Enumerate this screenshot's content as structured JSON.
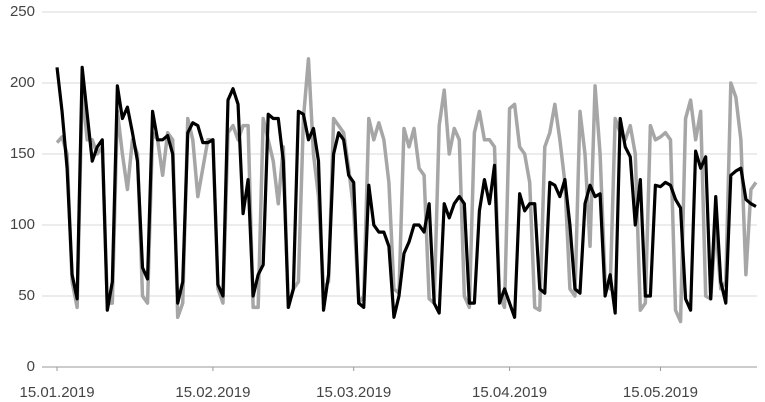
{
  "chart_data": {
    "type": "line",
    "x": [
      "2019-01-15",
      "2019-01-16",
      "2019-01-17",
      "2019-01-18",
      "2019-01-19",
      "2019-01-20",
      "2019-01-21",
      "2019-01-22",
      "2019-01-23",
      "2019-01-24",
      "2019-01-25",
      "2019-01-26",
      "2019-01-27",
      "2019-01-28",
      "2019-01-29",
      "2019-01-30",
      "2019-01-31",
      "2019-02-01",
      "2019-02-02",
      "2019-02-03",
      "2019-02-04",
      "2019-02-05",
      "2019-02-06",
      "2019-02-07",
      "2019-02-08",
      "2019-02-09",
      "2019-02-10",
      "2019-02-11",
      "2019-02-12",
      "2019-02-13",
      "2019-02-14",
      "2019-02-15",
      "2019-02-16",
      "2019-02-17",
      "2019-02-18",
      "2019-02-19",
      "2019-02-20",
      "2019-02-21",
      "2019-02-22",
      "2019-02-23",
      "2019-02-24",
      "2019-02-25",
      "2019-02-26",
      "2019-02-27",
      "2019-02-28",
      "2019-03-01",
      "2019-03-02",
      "2019-03-03",
      "2019-03-04",
      "2019-03-05",
      "2019-03-06",
      "2019-03-07",
      "2019-03-08",
      "2019-03-09",
      "2019-03-10",
      "2019-03-11",
      "2019-03-12",
      "2019-03-13",
      "2019-03-14",
      "2019-03-15",
      "2019-03-16",
      "2019-03-17",
      "2019-03-18",
      "2019-03-19",
      "2019-03-20",
      "2019-03-21",
      "2019-03-22",
      "2019-03-23",
      "2019-03-24",
      "2019-03-25",
      "2019-03-26",
      "2019-03-27",
      "2019-03-28",
      "2019-03-29",
      "2019-03-30",
      "2019-03-31",
      "2019-04-01",
      "2019-04-02",
      "2019-04-03",
      "2019-04-04",
      "2019-04-05",
      "2019-04-06",
      "2019-04-07",
      "2019-04-08",
      "2019-04-09",
      "2019-04-10",
      "2019-04-11",
      "2019-04-12",
      "2019-04-13",
      "2019-04-14",
      "2019-04-15",
      "2019-04-16",
      "2019-04-17",
      "2019-04-18",
      "2019-04-19",
      "2019-04-20",
      "2019-04-21",
      "2019-04-22",
      "2019-04-23",
      "2019-04-24",
      "2019-04-25",
      "2019-04-26",
      "2019-04-27",
      "2019-04-28",
      "2019-04-29",
      "2019-04-30",
      "2019-05-01",
      "2019-05-02",
      "2019-05-03",
      "2019-05-04",
      "2019-05-05",
      "2019-05-06",
      "2019-05-07",
      "2019-05-08",
      "2019-05-09",
      "2019-05-10",
      "2019-05-11",
      "2019-05-12",
      "2019-05-13",
      "2019-05-14",
      "2019-05-15",
      "2019-05-16",
      "2019-05-17",
      "2019-05-18",
      "2019-05-19",
      "2019-05-20",
      "2019-05-21",
      "2019-05-22",
      "2019-05-23",
      "2019-05-24",
      "2019-05-25",
      "2019-05-26",
      "2019-05-27",
      "2019-05-28",
      "2019-05-29",
      "2019-05-30",
      "2019-05-31",
      "2019-06-01",
      "2019-06-02",
      "2019-06-03"
    ],
    "series": [
      {
        "color": "#a6a6a6",
        "values": [
          158,
          162,
          150,
          60,
          42,
          195,
          160,
          160,
          150,
          155,
          45,
          45,
          180,
          150,
          125,
          160,
          150,
          50,
          45,
          165,
          160,
          135,
          165,
          160,
          35,
          45,
          175,
          160,
          120,
          140,
          160,
          160,
          55,
          45,
          165,
          170,
          160,
          170,
          170,
          42,
          42,
          175,
          160,
          145,
          115,
          155,
          42,
          55,
          60,
          175,
          217,
          150,
          120,
          55,
          60,
          175,
          170,
          165,
          140,
          110,
          45,
          50,
          175,
          160,
          172,
          160,
          130,
          55,
          52,
          168,
          155,
          168,
          140,
          135,
          48,
          45,
          170,
          195,
          150,
          168,
          160,
          50,
          42,
          165,
          180,
          160,
          160,
          155,
          50,
          42,
          182,
          185,
          155,
          150,
          130,
          42,
          40,
          155,
          165,
          185,
          160,
          130,
          55,
          50,
          180,
          150,
          85,
          198,
          150,
          60,
          55,
          175,
          165,
          160,
          170,
          150,
          40,
          45,
          170,
          160,
          162,
          165,
          160,
          40,
          32,
          175,
          188,
          160,
          180,
          50,
          48,
          100,
          55,
          60,
          200,
          190,
          160,
          65,
          125,
          130
        ]
      },
      {
        "color": "#000000",
        "values": [
          211,
          180,
          140,
          65,
          48,
          211,
          178,
          145,
          155,
          160,
          40,
          60,
          198,
          175,
          183,
          165,
          145,
          70,
          62,
          180,
          160,
          160,
          163,
          150,
          45,
          60,
          165,
          172,
          170,
          158,
          158,
          160,
          58,
          50,
          188,
          196,
          185,
          108,
          132,
          50,
          65,
          72,
          178,
          175,
          175,
          145,
          42,
          55,
          180,
          178,
          160,
          168,
          145,
          40,
          65,
          150,
          165,
          160,
          135,
          130,
          45,
          42,
          128,
          100,
          95,
          95,
          85,
          35,
          50,
          80,
          88,
          100,
          100,
          95,
          115,
          45,
          38,
          115,
          105,
          115,
          120,
          115,
          45,
          45,
          110,
          132,
          115,
          142,
          45,
          55,
          45,
          35,
          122,
          110,
          115,
          115,
          55,
          52,
          130,
          128,
          120,
          132,
          100,
          55,
          52,
          115,
          128,
          120,
          122,
          50,
          65,
          38,
          175,
          155,
          148,
          100,
          132,
          50,
          50,
          128,
          127,
          130,
          128,
          118,
          112,
          48,
          40,
          152,
          140,
          148,
          48,
          120,
          60,
          45,
          135,
          138,
          140,
          118,
          115,
          113
        ]
      }
    ],
    "xlim": [
      "2019-01-14",
      "2019-06-04"
    ],
    "xticks": [
      {
        "value": "2019-01-15",
        "label": "15.01.2019"
      },
      {
        "value": "2019-02-15",
        "label": "15.02.2019"
      },
      {
        "value": "2019-03-15",
        "label": "15.03.2019"
      },
      {
        "value": "2019-04-15",
        "label": "15.04.2019"
      },
      {
        "value": "2019-05-15",
        "label": "15.05.2019"
      }
    ],
    "ylim": [
      0,
      250
    ],
    "yticks": [
      0,
      50,
      100,
      150,
      200,
      250
    ],
    "grid": true
  }
}
